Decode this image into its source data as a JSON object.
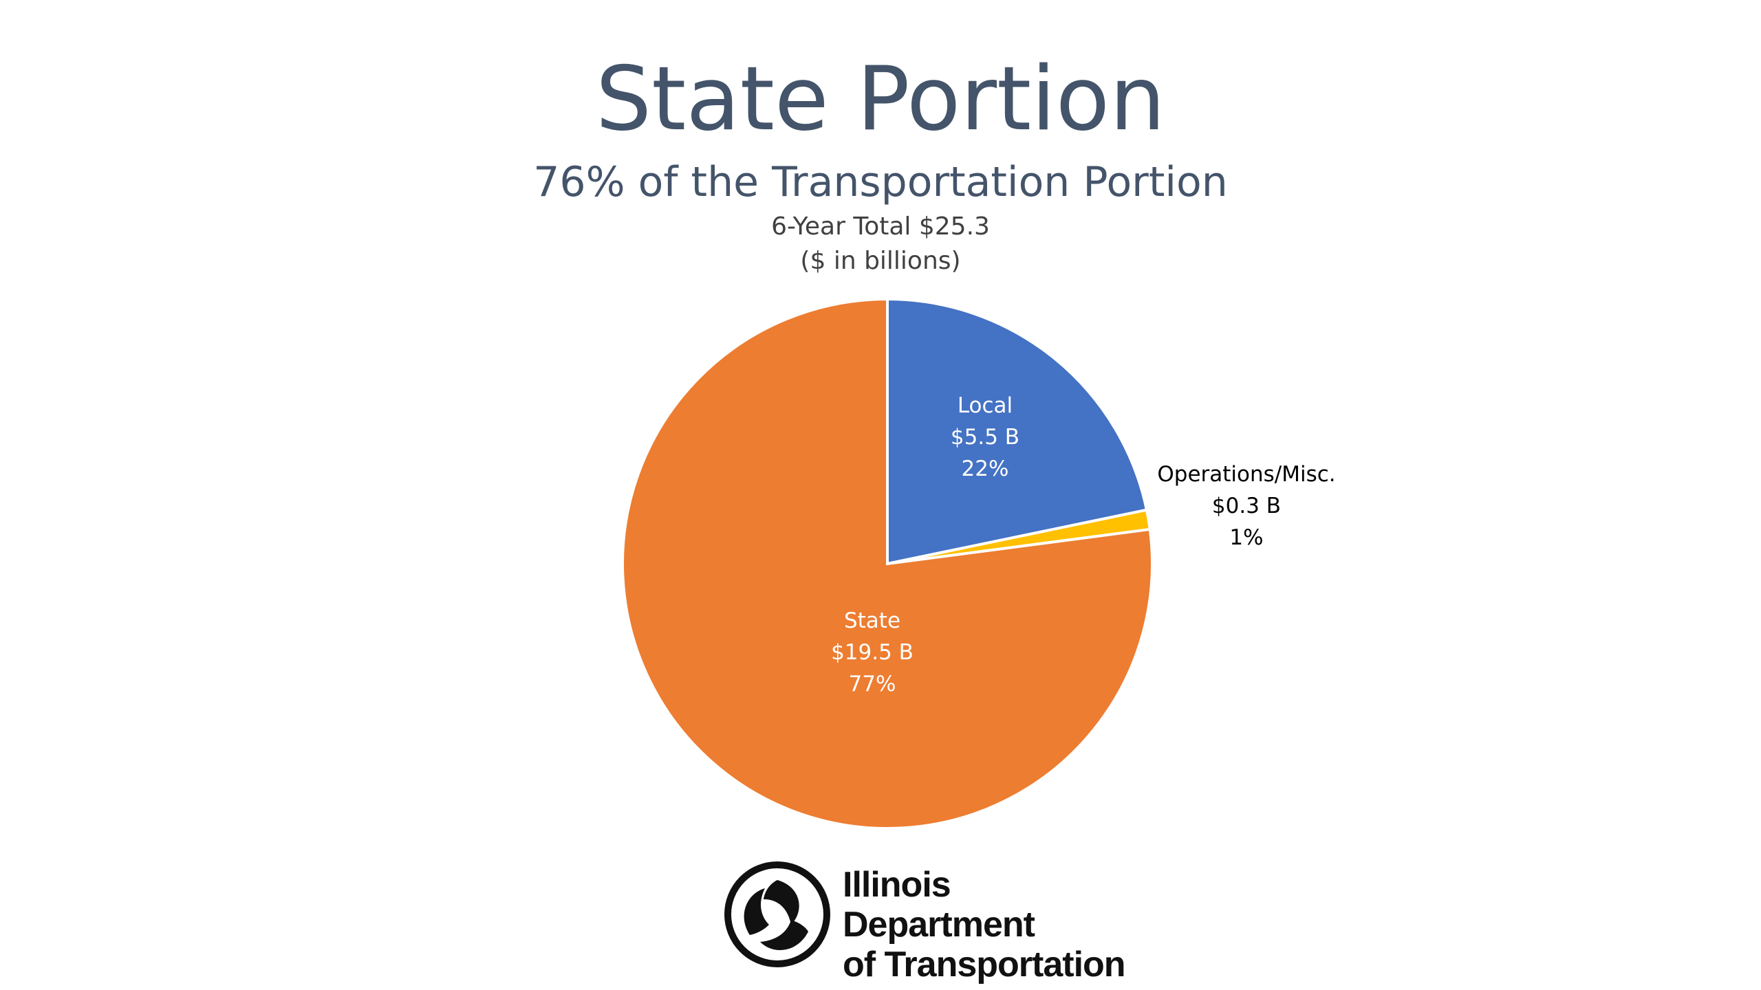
{
  "slide": {
    "title": "State Portion",
    "subtitle": "76% of the Transportation Portion"
  },
  "chart_data": {
    "type": "pie",
    "title_line1": "6-Year Total $25.3",
    "title_line2": "($ in billions)",
    "slices": [
      {
        "name": "Local",
        "value": 5.5,
        "value_label": "$5.5 B",
        "percent": 22,
        "percent_label": "22%",
        "color": "#4472c4",
        "label_color": "#ffffff"
      },
      {
        "name": "Operations/Misc.",
        "value": 0.3,
        "value_label": "$0.3 B",
        "percent": 1,
        "percent_label": "1%",
        "color": "#ffc000",
        "label_color": "#000000"
      },
      {
        "name": "State",
        "value": 19.5,
        "value_label": "$19.5 B",
        "percent": 77,
        "percent_label": "77%",
        "color": "#ed7d31",
        "label_color": "#ffffff"
      }
    ],
    "start_angle_deg": 0,
    "direction": "clockwise"
  },
  "logo": {
    "line1": "Illinois Department",
    "line2": "of Transportation",
    "icon": "idot-tri-swirl-logo"
  }
}
